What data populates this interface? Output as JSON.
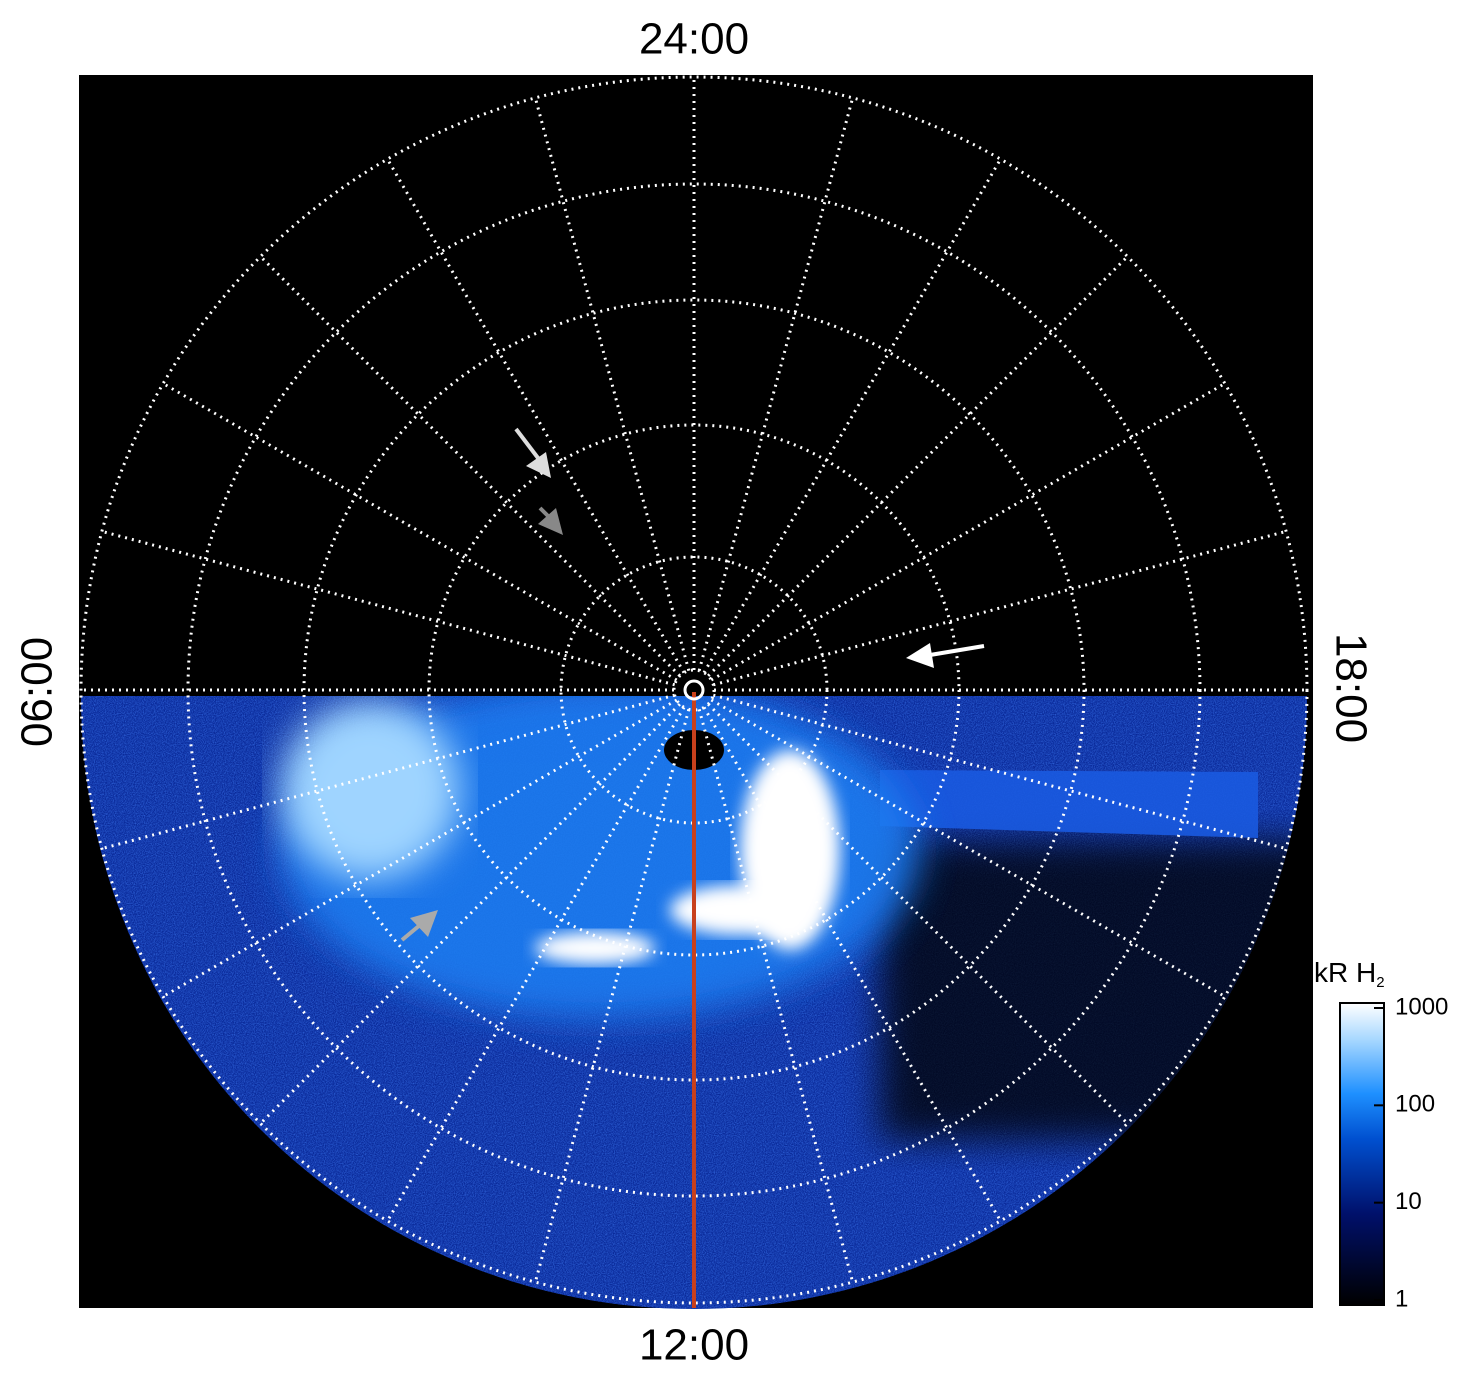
{
  "plot": {
    "labels": {
      "top": "24:00",
      "bottom": "12:00",
      "left": "06:00",
      "right": "18:00"
    }
  },
  "colorbar": {
    "title": "kR H",
    "title_subscript": "2",
    "log": true,
    "lim": [
      1,
      1000
    ],
    "ticks": [
      1,
      10,
      100,
      1000
    ]
  }
}
